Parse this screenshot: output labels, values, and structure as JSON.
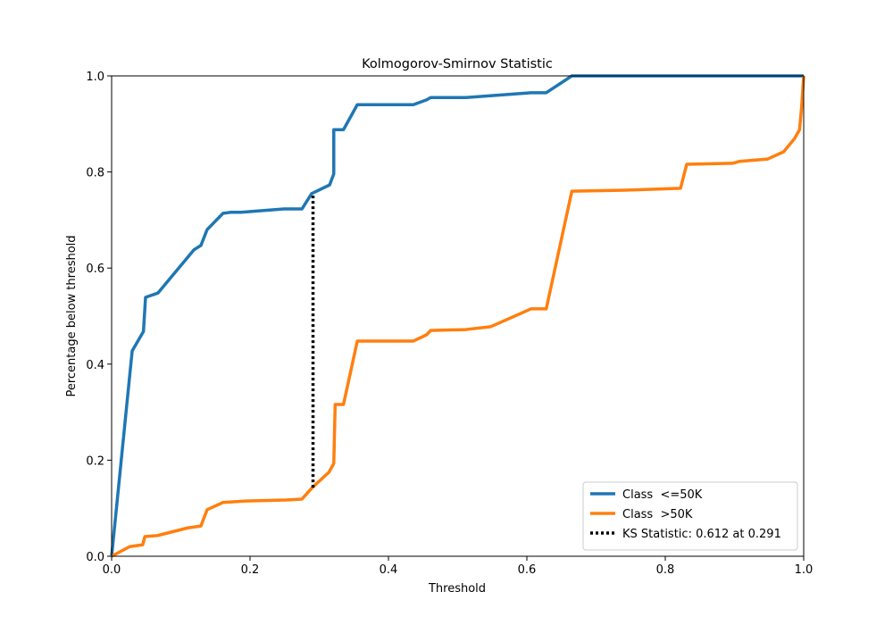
{
  "chart_data": {
    "type": "line",
    "title": "Kolmogorov-Smirnov Statistic",
    "xlabel": "Threshold",
    "ylabel": "Percentage below threshold",
    "xlim": [
      0,
      1
    ],
    "ylim": [
      0,
      1
    ],
    "xticks": [
      {
        "value": 0,
        "label": "0.0"
      },
      0.2,
      0.4,
      0.6,
      0.8,
      {
        "value": 1,
        "label": "1.0"
      }
    ],
    "yticks": [
      {
        "value": 0,
        "label": "0.0"
      },
      0.2,
      0.4,
      0.6,
      0.8,
      {
        "value": 1,
        "label": "1.0"
      }
    ],
    "grid": false,
    "legend": "lower right",
    "series": [
      {
        "name": "Class  <=50K",
        "color": "#1f77b4",
        "linestyle": "solid",
        "x": [
          0,
          0.0297,
          0.046,
          0.049,
          0.067,
          0.119,
          0.129,
          0.138,
          0.161,
          0.172,
          0.187,
          0.249,
          0.275,
          0.289,
          0.315,
          0.321,
          0.321,
          0.335,
          0.355,
          0.436,
          0.455,
          0.461,
          0.512,
          0.606,
          0.628,
          0.665,
          1
        ],
        "values": [
          0,
          0.4275,
          0.468,
          0.539,
          0.548,
          0.638,
          0.647,
          0.68,
          0.714,
          0.716,
          0.716,
          0.723,
          0.723,
          0.755,
          0.773,
          0.796,
          0.888,
          0.888,
          0.94,
          0.94,
          0.95,
          0.955,
          0.955,
          0.965,
          0.965,
          1,
          1
        ]
      },
      {
        "name": "Class  >50K",
        "color": "#ff7f0e",
        "linestyle": "solid",
        "x": [
          0,
          0.026,
          0.045,
          0.048,
          0.066,
          0.11,
          0.129,
          0.138,
          0.161,
          0.194,
          0.252,
          0.275,
          0.29,
          0.314,
          0.321,
          0.323,
          0.335,
          0.355,
          0.436,
          0.455,
          0.461,
          0.512,
          0.548,
          0.606,
          0.628,
          0.665,
          0.742,
          0.822,
          0.831,
          0.897,
          0.907,
          0.948,
          0.971,
          0.987,
          0.994,
          0.997,
          1
        ],
        "values": [
          0,
          0.02,
          0.024,
          0.041,
          0.043,
          0.059,
          0.063,
          0.097,
          0.112,
          0.115,
          0.117,
          0.119,
          0.143,
          0.175,
          0.193,
          0.316,
          0.316,
          0.448,
          0.448,
          0.461,
          0.47,
          0.472,
          0.478,
          0.515,
          0.515,
          0.76,
          0.762,
          0.766,
          0.816,
          0.818,
          0.822,
          0.827,
          0.842,
          0.87,
          0.888,
          0.935,
          1
        ]
      },
      {
        "name": "KS Statistic: 0.612 at 0.291",
        "color": "#000000",
        "linestyle": "dotted",
        "x": [
          0.291,
          0.291
        ],
        "values": [
          0.143,
          0.755
        ]
      }
    ]
  }
}
